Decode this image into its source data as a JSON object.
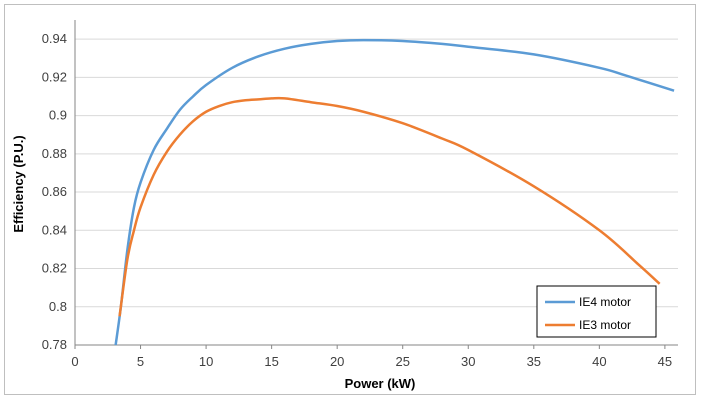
{
  "chart_data": {
    "type": "line",
    "title": "",
    "xlabel": "Power (kW)",
    "ylabel": "Efficiency (P.U.)",
    "xlim": [
      0,
      46
    ],
    "ylim": [
      0.78,
      0.95
    ],
    "xticks": [
      0,
      5,
      10,
      15,
      20,
      25,
      30,
      35,
      40,
      45
    ],
    "yticks": [
      0.78,
      0.8,
      0.82,
      0.84,
      0.86,
      0.88,
      0.9,
      0.92,
      0.94
    ],
    "ytick_labels": [
      "0.78",
      "0.8",
      "0.82",
      "0.84",
      "0.86",
      "0.88",
      "0.9",
      "0.92",
      "0.94"
    ],
    "grid": "horizontal",
    "legend_position": "bottom-right",
    "series": [
      {
        "name": "IE4 motor",
        "color": "#5b9bd5",
        "x": [
          3.1,
          3.5,
          4,
          4.5,
          5,
          6,
          7,
          8,
          9,
          10,
          12,
          14,
          16,
          18,
          20,
          22,
          25,
          28,
          30,
          35,
          40,
          42,
          45.7
        ],
        "y": [
          0.78,
          0.8,
          0.83,
          0.852,
          0.865,
          0.882,
          0.893,
          0.903,
          0.91,
          0.916,
          0.925,
          0.931,
          0.935,
          0.9375,
          0.939,
          0.9395,
          0.939,
          0.9375,
          0.936,
          0.932,
          0.925,
          0.921,
          0.913
        ]
      },
      {
        "name": "IE3 motor",
        "color": "#ed7d31",
        "x": [
          3.4,
          4,
          4.5,
          5,
          6,
          7,
          8,
          9,
          10,
          11,
          12,
          13,
          14,
          15,
          16,
          18,
          20,
          22,
          25,
          28,
          30,
          35,
          40,
          43,
          44.6
        ],
        "y": [
          0.795,
          0.825,
          0.84,
          0.852,
          0.869,
          0.881,
          0.89,
          0.897,
          0.902,
          0.905,
          0.907,
          0.908,
          0.9085,
          0.909,
          0.909,
          0.907,
          0.905,
          0.902,
          0.896,
          0.888,
          0.882,
          0.863,
          0.84,
          0.822,
          0.812
        ]
      }
    ]
  }
}
